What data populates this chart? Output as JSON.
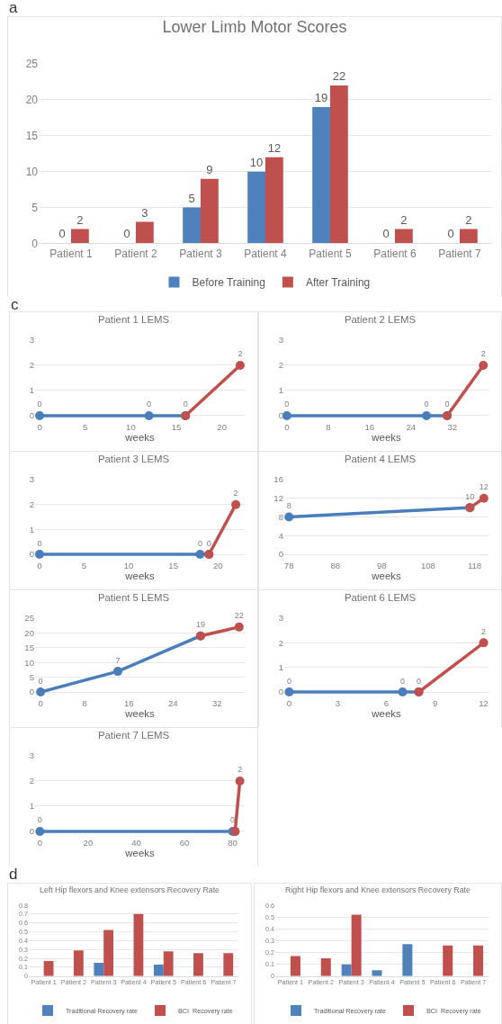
{
  "chart_data": [
    {
      "type": "bar",
      "title": "Lower Limb Motor Scores",
      "annotations": [
        "a"
      ],
      "categories": [
        "Patient 1",
        "Patient 2",
        "Patient 3",
        "Patient 4",
        "Patient 5",
        "Patient 6",
        "Patient 7"
      ],
      "ylim": [
        0,
        25
      ],
      "yticks": [
        0,
        5,
        10,
        15,
        20,
        25
      ],
      "grid": "y",
      "legend": "bottom",
      "data_labels": true,
      "series": [
        {
          "name": "Before Training",
          "color": "#4f81bd",
          "values": [
            0,
            0,
            5,
            10,
            19,
            0,
            0
          ]
        },
        {
          "name": "After Training",
          "color": "#c0504d",
          "values": [
            2,
            3,
            9,
            12,
            22,
            2,
            2
          ]
        }
      ]
    },
    {
      "type": "line",
      "title": "Patient 1 LEMS",
      "annotations": [
        "c"
      ],
      "xlabel": "weeks",
      "xlim": [
        -0.5,
        22.5
      ],
      "xticks": [
        0,
        5,
        10,
        15,
        20
      ],
      "ylim": [
        0,
        3
      ],
      "yticks": [
        0,
        1,
        2,
        3
      ],
      "grid": "y",
      "marker": "circle",
      "series": [
        {
          "color": "#4a7ebb",
          "x": [
            0,
            12,
            16
          ],
          "values": [
            0,
            0,
            0
          ],
          "value_labels": [
            "0",
            "0",
            "0"
          ]
        },
        {
          "color": "#c0504d",
          "x": [
            16,
            22
          ],
          "values": [
            0,
            2
          ],
          "value_labels": [
            null,
            "2"
          ]
        }
      ]
    },
    {
      "type": "line",
      "title": "Patient 2 LEMS",
      "xlabel": "weeks",
      "xlim": [
        -0.5,
        39
      ],
      "xticks": [
        0,
        8,
        16,
        24,
        32
      ],
      "ylim": [
        0,
        3
      ],
      "yticks": [
        0,
        1,
        2,
        3
      ],
      "grid": "y",
      "marker": "circle",
      "series": [
        {
          "color": "#4a7ebb",
          "x": [
            0,
            27,
            31
          ],
          "values": [
            0,
            0,
            0
          ],
          "value_labels": [
            "0",
            "0",
            "0"
          ]
        },
        {
          "color": "#c0504d",
          "x": [
            31,
            38
          ],
          "values": [
            0,
            2
          ],
          "value_labels": [
            null,
            "2"
          ]
        }
      ]
    },
    {
      "type": "line",
      "title": "Patient 3 LEMS",
      "xlabel": "weeks",
      "xlim": [
        -0.5,
        23
      ],
      "xticks": [
        0,
        5,
        10,
        15,
        20
      ],
      "ylim": [
        0,
        3
      ],
      "yticks": [
        0,
        1,
        2,
        3
      ],
      "grid": "y",
      "marker": "circle",
      "series": [
        {
          "color": "#4a7ebb",
          "x": [
            0,
            18,
            19
          ],
          "values": [
            0,
            0,
            0
          ],
          "value_labels": [
            "0",
            "0",
            "0"
          ]
        },
        {
          "color": "#c0504d",
          "x": [
            19,
            22
          ],
          "values": [
            0,
            2
          ],
          "value_labels": [
            null,
            "2"
          ]
        }
      ]
    },
    {
      "type": "line",
      "title": "Patient 4 LEMS",
      "xlabel": "weeks",
      "xlim": [
        77,
        121
      ],
      "xticks": [
        78,
        88,
        98,
        108,
        118
      ],
      "ylim": [
        0,
        16
      ],
      "yticks": [
        0,
        4,
        8,
        12,
        16
      ],
      "grid": "y",
      "marker": "circle",
      "series": [
        {
          "color": "#4a7ebb",
          "x": [
            78,
            117
          ],
          "values": [
            8,
            10
          ],
          "value_labels": [
            "8",
            "10"
          ]
        },
        {
          "color": "#c0504d",
          "x": [
            117,
            120
          ],
          "values": [
            10,
            12
          ],
          "value_labels": [
            null,
            "12"
          ]
        }
      ]
    },
    {
      "type": "line",
      "title": "Patient 5 LEMS",
      "xlabel": "weeks",
      "xlim": [
        -1,
        37
      ],
      "xticks": [
        0,
        8,
        16,
        24,
        32
      ],
      "ylim": [
        0,
        25
      ],
      "yticks": [
        0,
        5,
        10,
        15,
        20,
        25
      ],
      "grid": "y",
      "marker": "circle",
      "series": [
        {
          "color": "#4a7ebb",
          "x": [
            0,
            14,
            29
          ],
          "values": [
            0,
            7,
            19
          ],
          "value_labels": [
            "0",
            "7",
            "19"
          ]
        },
        {
          "color": "#c0504d",
          "x": [
            29,
            36
          ],
          "values": [
            19,
            22
          ],
          "value_labels": [
            null,
            "22"
          ]
        }
      ]
    },
    {
      "type": "line",
      "title": "Patient 6 LEMS",
      "xlabel": "weeks",
      "xlim": [
        -0.3,
        12.3
      ],
      "xticks": [
        0,
        3,
        6,
        9,
        12
      ],
      "ylim": [
        0,
        3
      ],
      "yticks": [
        0,
        1,
        2,
        3
      ],
      "grid": "y",
      "marker": "circle",
      "series": [
        {
          "color": "#4a7ebb",
          "x": [
            0,
            7,
            8
          ],
          "values": [
            0,
            0,
            0
          ],
          "value_labels": [
            "0",
            "0",
            "0"
          ]
        },
        {
          "color": "#c0504d",
          "x": [
            8,
            12
          ],
          "values": [
            0,
            2
          ],
          "value_labels": [
            null,
            "2"
          ]
        }
      ]
    },
    {
      "type": "line",
      "title": "Patient 7 LEMS",
      "xlabel": "weeks",
      "xlim": [
        -2,
        85
      ],
      "xticks": [
        0,
        20,
        40,
        60,
        80
      ],
      "ylim": [
        0,
        3
      ],
      "yticks": [
        0,
        1,
        2,
        3
      ],
      "grid": "y",
      "marker": "circle",
      "series": [
        {
          "color": "#4a7ebb",
          "x": [
            0,
            80,
            81
          ],
          "values": [
            0,
            0,
            0
          ],
          "value_labels": [
            "0",
            "0",
            null
          ]
        },
        {
          "color": "#c0504d",
          "x": [
            81,
            83
          ],
          "values": [
            0,
            2
          ],
          "value_labels": [
            null,
            "2"
          ]
        }
      ]
    },
    {
      "type": "bar",
      "title": "Left Hip flexors and Knee extensors Recovery Rate",
      "annotations": [
        "d"
      ],
      "categories": [
        "Patient 1",
        "Patient 2",
        "Patient 3",
        "Patient 4",
        "Patient 5",
        "Patient 6",
        "Patient 7"
      ],
      "ylim": [
        0,
        0.8
      ],
      "yticks": [
        0,
        0.1,
        0.2,
        0.3,
        0.4,
        0.5,
        0.6,
        0.7,
        0.8
      ],
      "grid": "y",
      "legend": "bottom",
      "series": [
        {
          "name": "Traditional Recovery rate",
          "color": "#4f81bd",
          "values": [
            null,
            null,
            0.15,
            null,
            0.13,
            null,
            null
          ]
        },
        {
          "name": "BCI  Recovery rate",
          "color": "#c0504d",
          "values": [
            0.17,
            0.29,
            0.52,
            0.7,
            0.28,
            0.26,
            0.26
          ]
        }
      ]
    },
    {
      "type": "bar",
      "title": "Right Hip flexors and Knee extensors Recovery Rate",
      "categories": [
        "Patient 1",
        "Patient 2",
        "Patient 3",
        "Patient 4",
        "Patient 5",
        "Patient 6",
        "Patient 7"
      ],
      "ylim": [
        0,
        0.6
      ],
      "yticks": [
        0,
        0.1,
        0.2,
        0.3,
        0.4,
        0.5,
        0.6
      ],
      "grid": "y",
      "legend": "bottom",
      "series": [
        {
          "name": "Traditional Recovery rate",
          "color": "#4f81bd",
          "values": [
            null,
            null,
            0.1,
            0.05,
            0.27,
            null,
            null
          ]
        },
        {
          "name": "BCI  Recovery rate",
          "color": "#c0504d",
          "values": [
            0.17,
            0.15,
            0.52,
            null,
            null,
            0.26,
            0.26
          ]
        }
      ]
    }
  ]
}
